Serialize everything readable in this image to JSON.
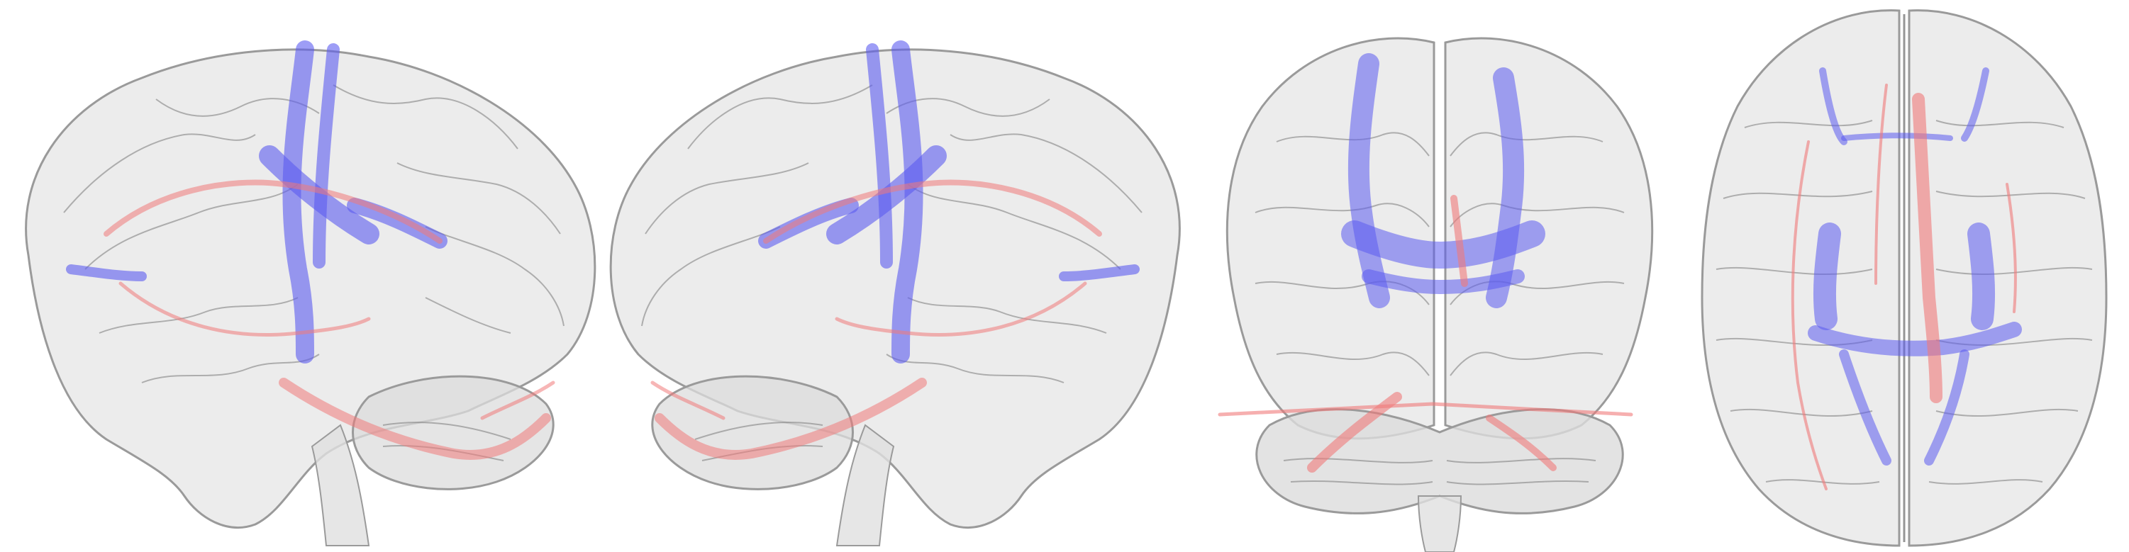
{
  "figure": {
    "background_color": "#ffffff",
    "brain_color": "#d9d9d9",
    "brain_outline_color": "#9a9a9a",
    "gyri_color": "#6e6e6e",
    "tract_colors": {
      "blue": "#5b5bf0",
      "red": "#f07a7a"
    },
    "panels": [
      {
        "view": "left-lateral"
      },
      {
        "view": "right-lateral"
      },
      {
        "view": "posterior"
      },
      {
        "view": "superior"
      }
    ]
  }
}
